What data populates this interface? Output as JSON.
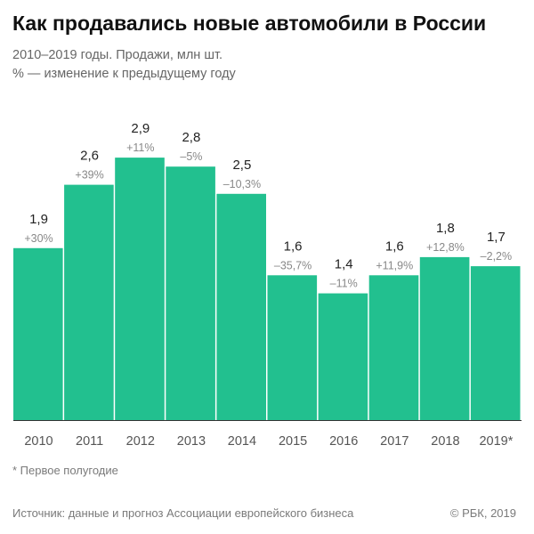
{
  "header": {
    "title": "Как продавались новые автомобили в России",
    "subtitle_line1": "2010–2019 годы. Продажи, млн шт.",
    "subtitle_line2": "% — изменение к предыдущему году"
  },
  "chart_data": {
    "type": "bar",
    "categories": [
      "2010",
      "2011",
      "2012",
      "2013",
      "2014",
      "2015",
      "2016",
      "2017",
      "2018",
      "2019*"
    ],
    "values": [
      1.9,
      2.6,
      2.9,
      2.8,
      2.5,
      1.6,
      1.4,
      1.6,
      1.8,
      1.7
    ],
    "value_labels": [
      "1,9",
      "2,6",
      "2,9",
      "2,8",
      "2,5",
      "1,6",
      "1,4",
      "1,6",
      "1,8",
      "1,7"
    ],
    "change_labels": [
      "+30%",
      "+39%",
      "+11%",
      "–5%",
      "–10,3%",
      "–35,7%",
      "–11%",
      "+11,9%",
      "+12,8%",
      "–2,2%"
    ],
    "bar_color": "#22c08f",
    "axis_color": "#333333",
    "grid": false
  },
  "footer": {
    "footnote": "* Первое полугодие",
    "source": "Источник: данные и прогноз Ассоциации европейского бизнеса",
    "copyright": "© РБК, 2019"
  }
}
